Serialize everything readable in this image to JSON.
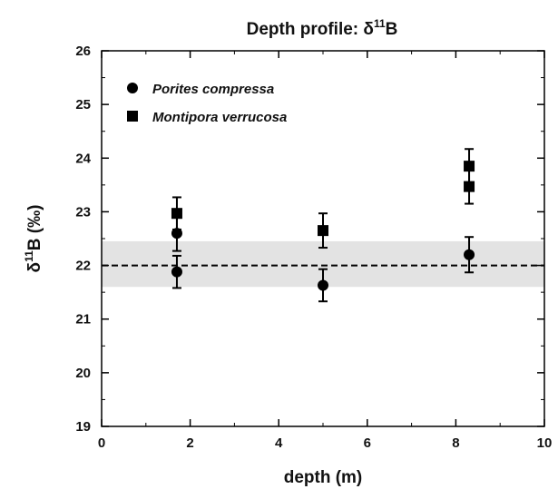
{
  "chart_data": {
    "type": "scatter",
    "title": {
      "main": "Depth profile: δ",
      "superscript": "11",
      "suffix": "B"
    },
    "xlabel": "depth (m)",
    "ylabel": {
      "prefix": "δ",
      "superscript": "11",
      "suffix": "B (‰)"
    },
    "xlim": [
      0,
      10
    ],
    "ylim": [
      19,
      26
    ],
    "x_ticks": [
      0,
      2,
      4,
      6,
      8,
      10
    ],
    "y_ticks": [
      19,
      20,
      21,
      22,
      23,
      24,
      25,
      26
    ],
    "grid": false,
    "legend_position": "top-left",
    "reference_line": {
      "y": 22.0,
      "style": "dashed"
    },
    "reference_band": {
      "y_low": 21.6,
      "y_high": 22.45,
      "color": "#e3e3e3"
    },
    "series": [
      {
        "name": "Porites compressa",
        "marker": "circle",
        "points": [
          {
            "x": 1.7,
            "y": 22.6,
            "err": 0.33
          },
          {
            "x": 1.7,
            "y": 21.88,
            "err": 0.3
          },
          {
            "x": 5.0,
            "y": 21.63,
            "err": 0.3
          },
          {
            "x": 8.3,
            "y": 22.2,
            "err": 0.33
          }
        ]
      },
      {
        "name": "Montipora verrucosa",
        "marker": "square",
        "points": [
          {
            "x": 1.7,
            "y": 22.97,
            "err": 0.3
          },
          {
            "x": 5.0,
            "y": 22.65,
            "err": 0.32
          },
          {
            "x": 8.3,
            "y": 23.85,
            "err": 0.32
          },
          {
            "x": 8.3,
            "y": 23.47,
            "err": 0.32
          }
        ]
      }
    ],
    "colors": {
      "markers": "#000000",
      "band": "#e3e3e3",
      "axes": "#000000"
    }
  }
}
